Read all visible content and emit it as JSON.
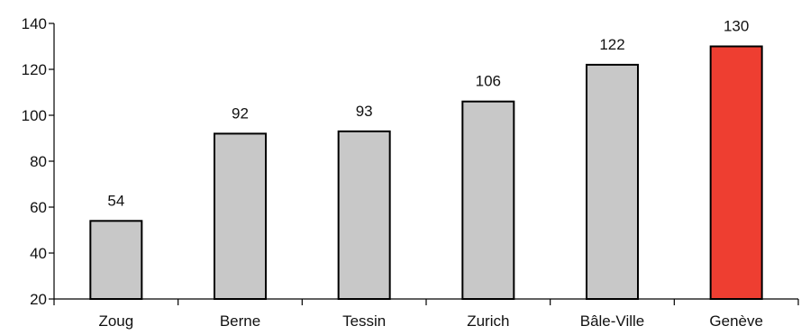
{
  "chart_data": {
    "type": "bar",
    "categories": [
      "Zoug",
      "Berne",
      "Tessin",
      "Zurich",
      "Bâle-Ville",
      "Genève"
    ],
    "values": [
      54,
      92,
      93,
      106,
      122,
      130
    ],
    "data_labels": [
      "54",
      "92",
      "93",
      "106",
      "122",
      "130"
    ],
    "ylim": [
      20,
      140
    ],
    "yticks": [
      20,
      40,
      60,
      80,
      100,
      120,
      140
    ],
    "ytick_labels": [
      "20",
      "40",
      "60",
      "80",
      "100",
      "120",
      "140"
    ],
    "grid": false,
    "colors": {
      "default_bar": "#c8c8c8",
      "highlight_bar": "#ee3e31",
      "bar_stroke": "#000000",
      "axis": "#000000"
    },
    "highlight_category": "Genève"
  }
}
